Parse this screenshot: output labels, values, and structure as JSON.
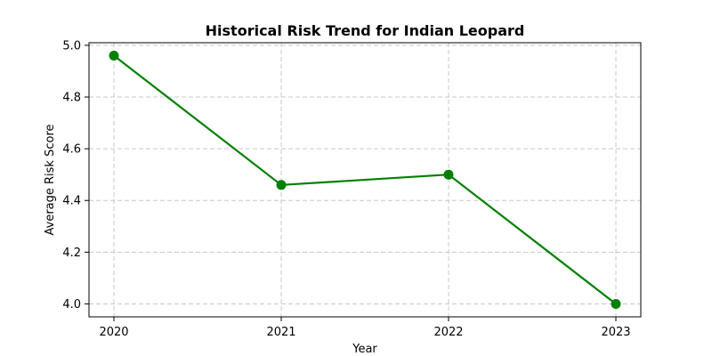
{
  "chart_data": {
    "type": "line",
    "title": "Historical Risk Trend for Indian Leopard",
    "xlabel": "Year",
    "ylabel": "Average Risk Score",
    "x": [
      "2020",
      "2021",
      "2022",
      "2023"
    ],
    "series": [
      {
        "values": [
          4.96,
          4.46,
          4.5,
          4.0
        ]
      }
    ],
    "ylim": [
      3.95,
      5.01
    ],
    "yticks": [
      "4.0",
      "4.2",
      "4.4",
      "4.6",
      "4.8",
      "5.0"
    ],
    "grid": true,
    "line_color": "#008000",
    "marker": "circle"
  }
}
